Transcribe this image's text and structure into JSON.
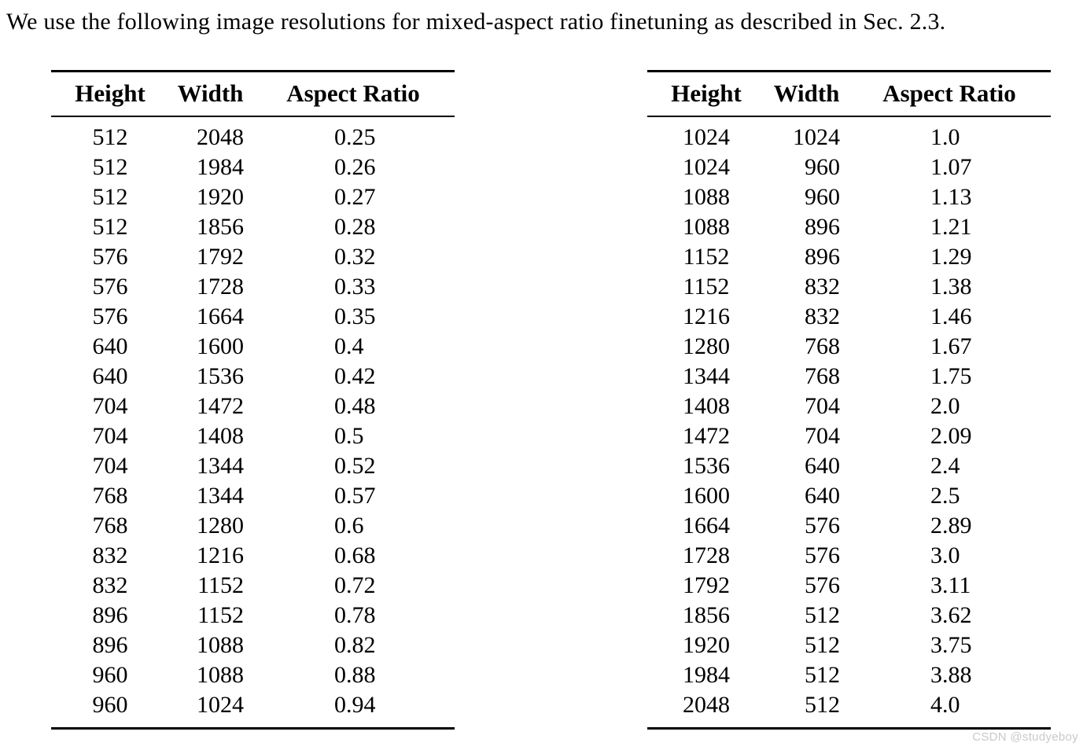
{
  "page": {
    "intro_text": "We use the following image resolutions for mixed-aspect ratio finetuning as described in Sec. 2.3.",
    "watermark": "CSDN @studyeboy"
  },
  "tables": {
    "columns": [
      "Height",
      "Width",
      "Aspect Ratio"
    ],
    "left": {
      "rows": [
        [
          "512",
          "2048",
          "0.25"
        ],
        [
          "512",
          "1984",
          "0.26"
        ],
        [
          "512",
          "1920",
          "0.27"
        ],
        [
          "512",
          "1856",
          "0.28"
        ],
        [
          "576",
          "1792",
          "0.32"
        ],
        [
          "576",
          "1728",
          "0.33"
        ],
        [
          "576",
          "1664",
          "0.35"
        ],
        [
          "640",
          "1600",
          "0.4"
        ],
        [
          "640",
          "1536",
          "0.42"
        ],
        [
          "704",
          "1472",
          "0.48"
        ],
        [
          "704",
          "1408",
          "0.5"
        ],
        [
          "704",
          "1344",
          "0.52"
        ],
        [
          "768",
          "1344",
          "0.57"
        ],
        [
          "768",
          "1280",
          "0.6"
        ],
        [
          "832",
          "1216",
          "0.68"
        ],
        [
          "832",
          "1152",
          "0.72"
        ],
        [
          "896",
          "1152",
          "0.78"
        ],
        [
          "896",
          "1088",
          "0.82"
        ],
        [
          "960",
          "1088",
          "0.88"
        ],
        [
          "960",
          "1024",
          "0.94"
        ]
      ]
    },
    "right": {
      "rows": [
        [
          "1024",
          "1024",
          "1.0"
        ],
        [
          "1024",
          "960",
          "1.07"
        ],
        [
          "1088",
          "960",
          "1.13"
        ],
        [
          "1088",
          "896",
          "1.21"
        ],
        [
          "1152",
          "896",
          "1.29"
        ],
        [
          "1152",
          "832",
          "1.38"
        ],
        [
          "1216",
          "832",
          "1.46"
        ],
        [
          "1280",
          "768",
          "1.67"
        ],
        [
          "1344",
          "768",
          "1.75"
        ],
        [
          "1408",
          "704",
          "2.0"
        ],
        [
          "1472",
          "704",
          "2.09"
        ],
        [
          "1536",
          "640",
          "2.4"
        ],
        [
          "1600",
          "640",
          "2.5"
        ],
        [
          "1664",
          "576",
          "2.89"
        ],
        [
          "1728",
          "576",
          "3.0"
        ],
        [
          "1792",
          "576",
          "3.11"
        ],
        [
          "1856",
          "512",
          "3.62"
        ],
        [
          "1920",
          "512",
          "3.75"
        ],
        [
          "1984",
          "512",
          "3.88"
        ],
        [
          "2048",
          "512",
          "4.0"
        ]
      ]
    }
  },
  "colors": {
    "text": "#000000",
    "background": "#ffffff",
    "rule": "#000000",
    "watermark": "#cbc8c8"
  }
}
